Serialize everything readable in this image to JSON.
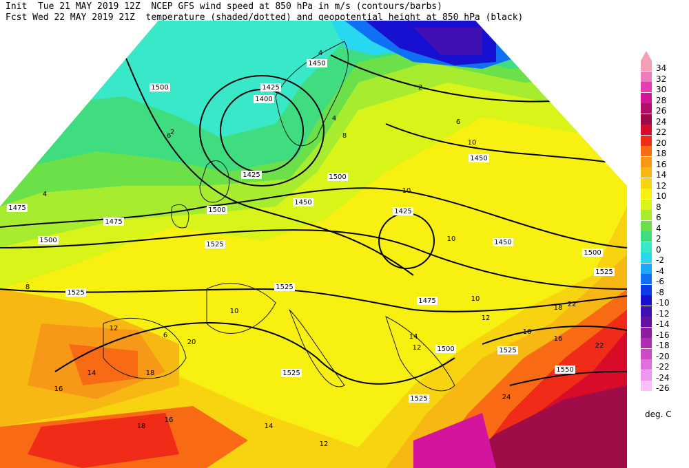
{
  "header": {
    "line1": "Init  Tue 21 MAY 2019 12Z  NCEP GFS wind speed at 850 hPa in m/s (contours/barbs)",
    "line2": "Fcst Wed 22 MAY 2019 21Z  temperature (shaded/dotted) and geopotential height at 850 hPa (black)"
  },
  "legend": {
    "units": "deg. C",
    "top_color": "#f4a0b4",
    "levels": [
      {
        "label": "34",
        "color": "#f4a0b4"
      },
      {
        "label": "32",
        "color": "#f07cc0"
      },
      {
        "label": "30",
        "color": "#e83cb4"
      },
      {
        "label": "28",
        "color": "#d4149c"
      },
      {
        "label": "26",
        "color": "#b0106c"
      },
      {
        "label": "24",
        "color": "#a00c48"
      },
      {
        "label": "22",
        "color": "#d80c28"
      },
      {
        "label": "20",
        "color": "#f02c18"
      },
      {
        "label": "18",
        "color": "#f86a14"
      },
      {
        "label": "16",
        "color": "#f89818"
      },
      {
        "label": "14",
        "color": "#f8b814"
      },
      {
        "label": "12",
        "color": "#f8d410"
      },
      {
        "label": "10",
        "color": "#f8f010"
      },
      {
        "label": "8",
        "color": "#d8f418"
      },
      {
        "label": "6",
        "color": "#a8ec30"
      },
      {
        "label": "4",
        "color": "#6ce048"
      },
      {
        "label": "2",
        "color": "#40dc80"
      },
      {
        "label": "0",
        "color": "#38e8c8"
      },
      {
        "label": "-2",
        "color": "#28d8f0"
      },
      {
        "label": "-4",
        "color": "#1ca8f8"
      },
      {
        "label": "-6",
        "color": "#1070f4"
      },
      {
        "label": "-8",
        "color": "#0c3ce8"
      },
      {
        "label": "-10",
        "color": "#1810d0"
      },
      {
        "label": "-12",
        "color": "#4010b4"
      },
      {
        "label": "-14",
        "color": "#6410a0"
      },
      {
        "label": "-16",
        "color": "#8c1ca0"
      },
      {
        "label": "-18",
        "color": "#b02cb0"
      },
      {
        "label": "-20",
        "color": "#d048c8"
      },
      {
        "label": "-22",
        "color": "#e070e0"
      },
      {
        "label": "-24",
        "color": "#f098f0"
      },
      {
        "label": "-26",
        "color": "#f8c0f8"
      }
    ]
  },
  "height_labels": [
    "1500",
    "1450",
    "1425",
    "1400",
    "1425",
    "1500",
    "1450",
    "1475",
    "1425",
    "1450",
    "1475",
    "1525",
    "1500",
    "1475",
    "1500",
    "1525",
    "1525",
    "1450",
    "1500",
    "1525",
    "1525",
    "1550",
    "1525",
    "1500",
    "1525"
  ],
  "temp_labels": [
    "6",
    "2",
    "4",
    "8",
    "10",
    "6",
    "4",
    "10",
    "8",
    "10",
    "10",
    "12",
    "14",
    "16",
    "18",
    "20",
    "16",
    "18",
    "12",
    "14",
    "16",
    "16",
    "18",
    "22",
    "22",
    "24",
    "12",
    "14",
    "10",
    "12",
    "4",
    "6",
    "2"
  ]
}
